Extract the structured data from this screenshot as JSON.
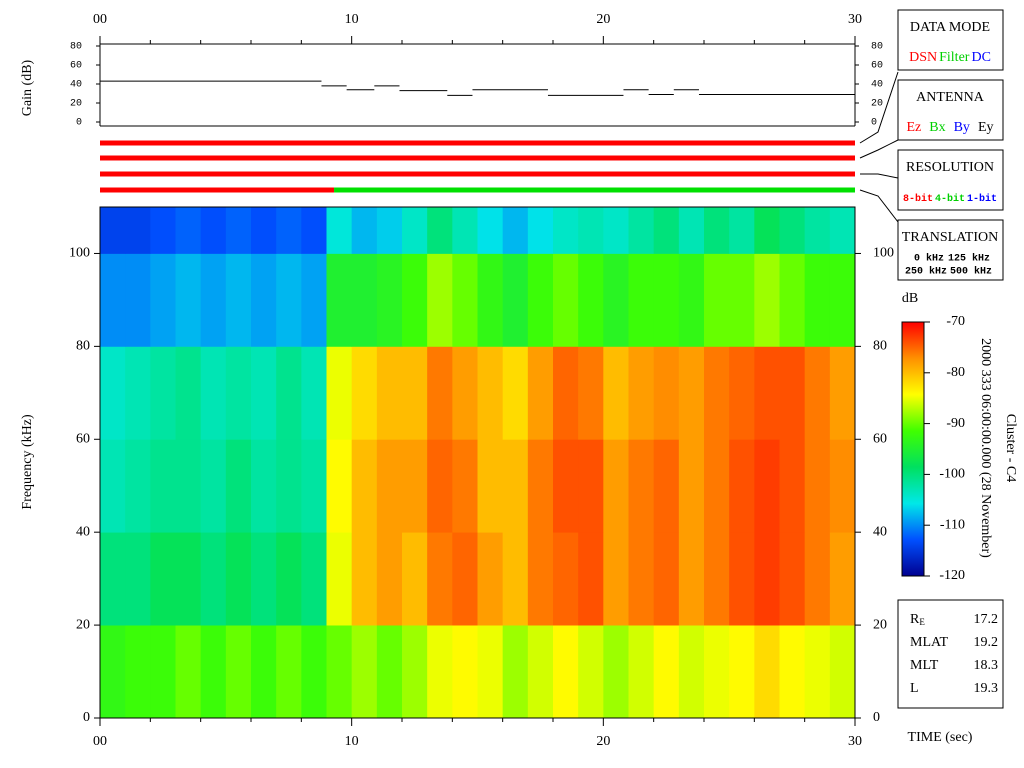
{
  "chart_data": [
    {
      "type": "step",
      "ylabel": "Gain (dB)",
      "color": "#000000",
      "xlim": [
        0,
        30
      ],
      "xticks": [
        {
          "value": 0,
          "label": "00"
        },
        10,
        20,
        30
      ],
      "x_minor_ticks": [
        2,
        4,
        6,
        8,
        12,
        14,
        16,
        18,
        22,
        24,
        26,
        28
      ],
      "ylim": [
        0,
        80
      ],
      "yticks": [
        0,
        20,
        40,
        60,
        80
      ],
      "x_start": [
        0,
        8.8,
        9.8,
        10.9,
        11.9,
        13.8,
        14.8,
        17.8,
        20.8,
        21.8,
        22.8,
        23.8
      ],
      "x_end": [
        8.8,
        9.8,
        10.9,
        11.9,
        13.8,
        14.8,
        17.8,
        20.8,
        21.8,
        22.8,
        23.8,
        30
      ],
      "values": [
        43,
        38,
        34,
        38,
        33,
        28,
        34,
        28,
        34,
        29,
        34,
        29
      ]
    },
    {
      "type": "status",
      "xlim": [
        0,
        30
      ],
      "series": [
        {
          "x_start": [
            0
          ],
          "x_end": [
            30
          ],
          "colors": [
            "#ff0000"
          ]
        },
        {
          "x_start": [
            0
          ],
          "x_end": [
            30
          ],
          "colors": [
            "#ff0000"
          ]
        },
        {
          "x_start": [
            0
          ],
          "x_end": [
            30
          ],
          "colors": [
            "#ff0000"
          ]
        },
        {
          "x_start": [
            0,
            9.3
          ],
          "x_end": [
            9.3,
            30
          ],
          "colors": [
            "#ff0000",
            "#00e000"
          ]
        }
      ]
    },
    {
      "type": "heatmap",
      "ylabel": "Frequency (kHz)",
      "xlabel": "TIME (sec)",
      "xlim": [
        0,
        30
      ],
      "xticks": [
        {
          "value": 0,
          "label": "00"
        },
        10,
        20,
        30
      ],
      "x_minor_ticks": [
        2,
        4,
        6,
        8,
        12,
        14,
        16,
        18,
        22,
        24,
        26,
        28
      ],
      "ylim": [
        0,
        110
      ],
      "yticks": [
        0,
        20,
        40,
        60,
        80,
        100
      ],
      "x_bins": [
        0,
        1,
        2,
        3,
        4,
        5,
        6,
        7,
        8,
        9,
        10,
        11,
        12,
        13,
        14,
        15,
        16,
        17,
        18,
        19,
        20,
        21,
        22,
        23,
        24,
        25,
        26,
        27,
        28,
        29,
        30
      ],
      "y_bins": [
        0,
        20,
        40,
        60,
        80,
        100,
        110
      ],
      "z": [
        [
          -93,
          -92,
          -92,
          -90,
          -92,
          -90,
          -92,
          -90,
          -92,
          -90,
          -88,
          -90,
          -88,
          -85,
          -84,
          -85,
          -88,
          -86,
          -84,
          -86,
          -88,
          -86,
          -84,
          -86,
          -85,
          -84,
          -82,
          -84,
          -85,
          -86
        ],
        [
          -100,
          -100,
          -98,
          -98,
          -100,
          -98,
          -100,
          -98,
          -100,
          -85,
          -80,
          -78,
          -80,
          -76,
          -75,
          -78,
          -80,
          -76,
          -75,
          -74,
          -78,
          -76,
          -75,
          -78,
          -76,
          -74,
          -73,
          -74,
          -76,
          -78
        ],
        [
          -103,
          -102,
          -101,
          -101,
          -102,
          -100,
          -102,
          -101,
          -102,
          -84,
          -80,
          -78,
          -78,
          -75,
          -76,
          -80,
          -80,
          -76,
          -74,
          -74,
          -78,
          -76,
          -75,
          -78,
          -76,
          -74,
          -73,
          -74,
          -76,
          -77
        ],
        [
          -104,
          -103,
          -102,
          -101,
          -103,
          -102,
          -103,
          -101,
          -103,
          -85,
          -82,
          -80,
          -80,
          -76,
          -78,
          -80,
          -82,
          -78,
          -75,
          -76,
          -80,
          -78,
          -77,
          -78,
          -76,
          -75,
          -74,
          -74,
          -76,
          -78
        ],
        [
          -110,
          -110,
          -109,
          -108,
          -109,
          -108,
          -109,
          -108,
          -109,
          -95,
          -95,
          -94,
          -92,
          -88,
          -90,
          -93,
          -95,
          -92,
          -90,
          -92,
          -94,
          -92,
          -92,
          -93,
          -90,
          -90,
          -88,
          -90,
          -92,
          -92
        ],
        [
          -114,
          -114,
          -113,
          -112,
          -113,
          -112,
          -113,
          -112,
          -113,
          -105,
          -108,
          -107,
          -104,
          -100,
          -103,
          -106,
          -108,
          -106,
          -104,
          -103,
          -104,
          -102,
          -100,
          -103,
          -100,
          -102,
          -98,
          -100,
          -102,
          -103
        ]
      ],
      "colorbar": {
        "title": "dB",
        "range": [
          -120,
          -70
        ],
        "ticks": [
          -70,
          -80,
          -90,
          -100,
          -110,
          -120
        ],
        "colors": [
          "#000090",
          "#0050ff",
          "#00e8e8",
          "#00e060",
          "#40ff00",
          "#ffff00",
          "#ff9000",
          "#ff0000"
        ]
      },
      "annotations": [
        "2000 333 06:00:00.000 (28 November)",
        "Cluster - C4"
      ]
    }
  ],
  "panels": [
    {
      "title": "DATA MODE",
      "items": [
        {
          "label": "DSN",
          "color": "#ff0000"
        },
        {
          "label": "Filter",
          "color": "#00d000"
        },
        {
          "label": "DC",
          "color": "#0000ff"
        }
      ]
    },
    {
      "title": "ANTENNA",
      "items": [
        {
          "label": "Ez",
          "color": "#ff0000"
        },
        {
          "label": "Bx",
          "color": "#00d000"
        },
        {
          "label": "By",
          "color": "#0000ff"
        },
        {
          "label": "Ey",
          "color": "#000000"
        }
      ]
    },
    {
      "title": "RESOLUTION",
      "items": [
        {
          "label": "8-bit",
          "color": "#ff0000"
        },
        {
          "label": "4-bit",
          "color": "#00d000"
        },
        {
          "label": "1-bit",
          "color": "#0000ff"
        }
      ]
    },
    {
      "title": "TRANSLATION",
      "items": [
        {
          "label": "0 kHz",
          "color": "#ff0000"
        },
        {
          "label": "125 kHz",
          "color": "#00d000"
        },
        {
          "label": "250 kHz",
          "color": "#0000ff"
        },
        {
          "label": "500 kHz",
          "color": "#000000"
        }
      ]
    }
  ],
  "info": [
    {
      "name": "R",
      "sub": "E",
      "value": 17.2
    },
    {
      "name": "MLAT",
      "value": 19.2
    },
    {
      "name": "MLT",
      "value": 18.3
    },
    {
      "name": "L",
      "value": 19.3
    }
  ]
}
